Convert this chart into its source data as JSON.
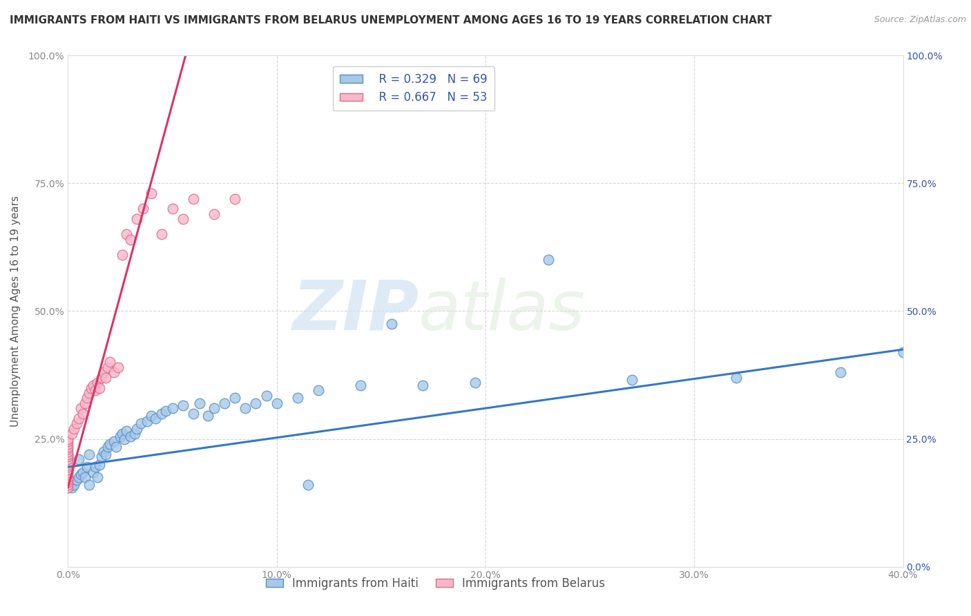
{
  "title": "IMMIGRANTS FROM HAITI VS IMMIGRANTS FROM BELARUS UNEMPLOYMENT AMONG AGES 16 TO 19 YEARS CORRELATION CHART",
  "source": "Source: ZipAtlas.com",
  "xlabel": "",
  "ylabel": "Unemployment Among Ages 16 to 19 years",
  "xlim": [
    0.0,
    0.4
  ],
  "ylim": [
    0.0,
    1.0
  ],
  "xticks": [
    0.0,
    0.1,
    0.2,
    0.3,
    0.4
  ],
  "yticks": [
    0.0,
    0.25,
    0.5,
    0.75,
    1.0
  ],
  "xticklabels": [
    "0.0%",
    "10.0%",
    "20.0%",
    "30.0%",
    "40.0%"
  ],
  "yticklabels_left": [
    "",
    "25.0%",
    "50.0%",
    "75.0%",
    "100.0%"
  ],
  "yticklabels_right": [
    "0.0%",
    "25.0%",
    "50.0%",
    "75.0%",
    "100.0%"
  ],
  "haiti_color": "#a8c8e8",
  "belarus_color": "#f8b8cc",
  "haiti_edge_color": "#5590c8",
  "belarus_edge_color": "#e06888",
  "trend_haiti_color": "#3377cc",
  "trend_belarus_color": "#dd3366",
  "legend_box_haiti": "#a8c8e8",
  "legend_box_belarus": "#f8b8cc",
  "legend_text_color": "#3355aa",
  "R_haiti": 0.329,
  "N_haiti": 69,
  "R_belarus": 0.667,
  "N_belarus": 53,
  "background_color": "#ffffff",
  "grid_color": "#cccccc",
  "watermark_zip": "ZIP",
  "watermark_atlas": "atlas",
  "haiti_scatter_x": [
    0.0,
    0.0,
    0.0,
    0.0,
    0.0,
    0.0,
    0.0,
    0.0,
    0.0,
    0.0,
    0.002,
    0.003,
    0.004,
    0.005,
    0.005,
    0.006,
    0.007,
    0.008,
    0.009,
    0.01,
    0.01,
    0.012,
    0.013,
    0.014,
    0.015,
    0.016,
    0.017,
    0.018,
    0.019,
    0.02,
    0.022,
    0.023,
    0.025,
    0.026,
    0.027,
    0.028,
    0.03,
    0.032,
    0.033,
    0.035,
    0.038,
    0.04,
    0.042,
    0.045,
    0.047,
    0.05,
    0.055,
    0.06,
    0.063,
    0.067,
    0.07,
    0.075,
    0.08,
    0.085,
    0.09,
    0.095,
    0.1,
    0.11,
    0.115,
    0.12,
    0.14,
    0.155,
    0.17,
    0.195,
    0.23,
    0.27,
    0.32,
    0.37,
    0.4
  ],
  "haiti_scatter_y": [
    0.155,
    0.165,
    0.175,
    0.185,
    0.195,
    0.2,
    0.205,
    0.21,
    0.215,
    0.22,
    0.155,
    0.16,
    0.17,
    0.175,
    0.21,
    0.18,
    0.185,
    0.175,
    0.195,
    0.16,
    0.22,
    0.185,
    0.195,
    0.175,
    0.2,
    0.215,
    0.225,
    0.22,
    0.235,
    0.24,
    0.245,
    0.235,
    0.255,
    0.26,
    0.25,
    0.265,
    0.255,
    0.26,
    0.27,
    0.28,
    0.285,
    0.295,
    0.29,
    0.3,
    0.305,
    0.31,
    0.315,
    0.3,
    0.32,
    0.295,
    0.31,
    0.32,
    0.33,
    0.31,
    0.32,
    0.335,
    0.32,
    0.33,
    0.16,
    0.345,
    0.355,
    0.475,
    0.355,
    0.36,
    0.6,
    0.365,
    0.37,
    0.38,
    0.42
  ],
  "belarus_scatter_x": [
    0.0,
    0.0,
    0.0,
    0.0,
    0.0,
    0.0,
    0.0,
    0.0,
    0.0,
    0.0,
    0.0,
    0.0,
    0.0,
    0.0,
    0.0,
    0.0,
    0.0,
    0.0,
    0.0,
    0.0,
    0.002,
    0.003,
    0.004,
    0.005,
    0.006,
    0.007,
    0.008,
    0.009,
    0.01,
    0.011,
    0.012,
    0.013,
    0.014,
    0.015,
    0.016,
    0.017,
    0.018,
    0.019,
    0.02,
    0.022,
    0.024,
    0.026,
    0.028,
    0.03,
    0.033,
    0.036,
    0.04,
    0.045,
    0.05,
    0.055,
    0.06,
    0.07,
    0.08
  ],
  "belarus_scatter_y": [
    0.155,
    0.16,
    0.165,
    0.17,
    0.175,
    0.18,
    0.185,
    0.19,
    0.195,
    0.2,
    0.205,
    0.21,
    0.215,
    0.22,
    0.225,
    0.23,
    0.235,
    0.24,
    0.245,
    0.25,
    0.26,
    0.27,
    0.28,
    0.29,
    0.31,
    0.3,
    0.32,
    0.33,
    0.34,
    0.35,
    0.355,
    0.345,
    0.36,
    0.35,
    0.37,
    0.38,
    0.37,
    0.39,
    0.4,
    0.38,
    0.39,
    0.61,
    0.65,
    0.64,
    0.68,
    0.7,
    0.73,
    0.65,
    0.7,
    0.68,
    0.72,
    0.69,
    0.72
  ],
  "belarus_trend_x0": 0.0,
  "belarus_trend_y0": 0.155,
  "belarus_trend_x1": 0.055,
  "belarus_trend_y1": 0.98,
  "haiti_trend_x0": 0.0,
  "haiti_trend_y0": 0.195,
  "haiti_trend_x1": 0.4,
  "haiti_trend_y1": 0.425,
  "title_fontsize": 11,
  "axis_label_fontsize": 11,
  "tick_fontsize": 10,
  "legend_fontsize": 11
}
